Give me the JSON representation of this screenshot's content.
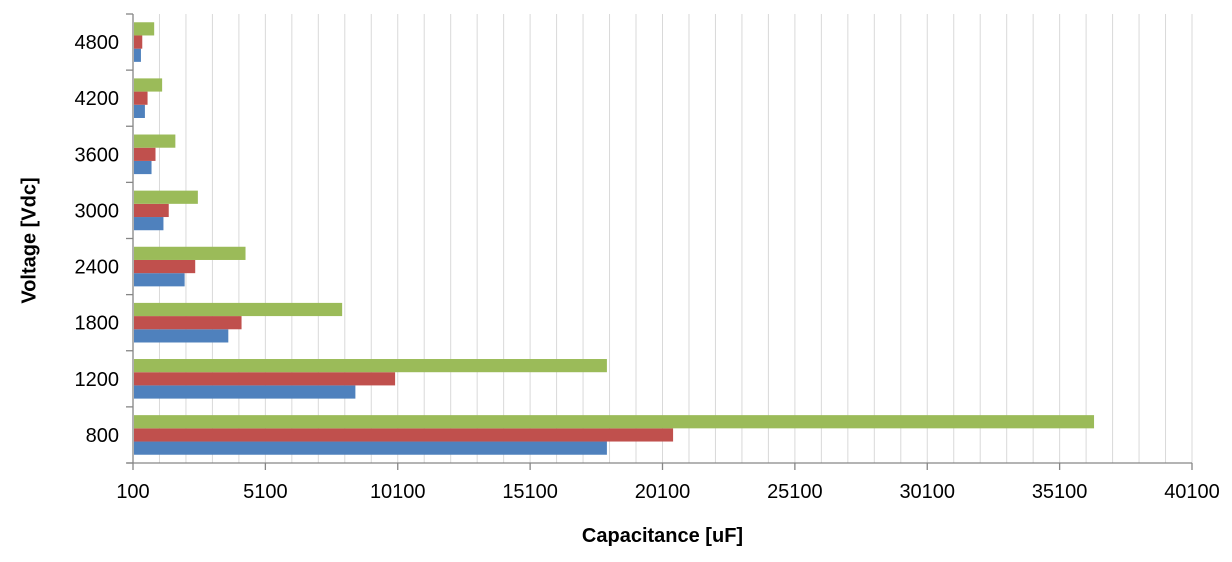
{
  "chart_data": {
    "type": "bar",
    "orientation": "horizontal",
    "categories": [
      "800",
      "1200",
      "1800",
      "2400",
      "3000",
      "3600",
      "4200",
      "4800"
    ],
    "series": [
      {
        "color": "#4f81bd",
        "values": [
          18000,
          8500,
          3700,
          2050,
          1250,
          800,
          550,
          400
        ]
      },
      {
        "color": "#c0504d",
        "values": [
          20500,
          10000,
          4200,
          2450,
          1450,
          950,
          650,
          450
        ]
      },
      {
        "color": "#9bbb59",
        "values": [
          36400,
          18000,
          8000,
          4350,
          2550,
          1700,
          1200,
          900
        ]
      }
    ],
    "x_ticks": [
      "100",
      "5100",
      "10100",
      "15100",
      "20100",
      "25100",
      "30100",
      "35100",
      "40100"
    ],
    "xlim": [
      100,
      40100
    ],
    "minor_grid_step": 1000,
    "xlabel": "Capacitance [uF]",
    "ylabel": "Voltage [Vdc]",
    "grid": true,
    "legend": "none"
  }
}
